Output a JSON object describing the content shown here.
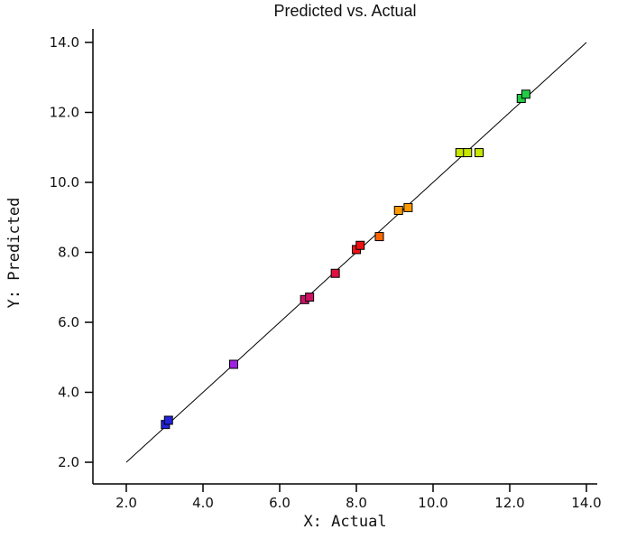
{
  "chart_data": {
    "type": "scatter",
    "title": "Predicted vs. Actual",
    "xlabel": "X: Actual",
    "ylabel": "Y: Predicted",
    "xlim": [
      2.0,
      14.0
    ],
    "ylim": [
      2.0,
      14.0
    ],
    "xticks": [
      2.0,
      4.0,
      6.0,
      8.0,
      10.0,
      12.0,
      14.0
    ],
    "yticks": [
      2.0,
      4.0,
      6.0,
      8.0,
      10.0,
      12.0,
      14.0
    ],
    "grid": false,
    "legend": "none",
    "reference_line": {
      "x1": 2.0,
      "y1": 2.0,
      "x2": 14.0,
      "y2": 14.0,
      "color": "#000000"
    },
    "marker": {
      "shape": "square",
      "size": 9,
      "outline": "#000000"
    },
    "points": [
      {
        "x": 3.02,
        "y": 3.08,
        "color": "#2222dd"
      },
      {
        "x": 3.1,
        "y": 3.2,
        "color": "#2222dd"
      },
      {
        "x": 4.8,
        "y": 4.8,
        "color": "#a020e0"
      },
      {
        "x": 6.65,
        "y": 6.65,
        "color": "#cc1166"
      },
      {
        "x": 6.78,
        "y": 6.72,
        "color": "#cc1166"
      },
      {
        "x": 7.45,
        "y": 7.4,
        "color": "#e01040"
      },
      {
        "x": 8.0,
        "y": 8.08,
        "color": "#ee1111"
      },
      {
        "x": 8.1,
        "y": 8.2,
        "color": "#ee1111"
      },
      {
        "x": 8.6,
        "y": 8.45,
        "color": "#ff6600"
      },
      {
        "x": 9.1,
        "y": 9.2,
        "color": "#ff9900"
      },
      {
        "x": 9.35,
        "y": 9.28,
        "color": "#ff9900"
      },
      {
        "x": 10.7,
        "y": 10.85,
        "color": "#c8e600"
      },
      {
        "x": 10.9,
        "y": 10.85,
        "color": "#c8e600"
      },
      {
        "x": 11.2,
        "y": 10.85,
        "color": "#c8e600"
      },
      {
        "x": 12.3,
        "y": 12.4,
        "color": "#22cc44"
      },
      {
        "x": 12.42,
        "y": 12.52,
        "color": "#22cc44"
      }
    ]
  }
}
